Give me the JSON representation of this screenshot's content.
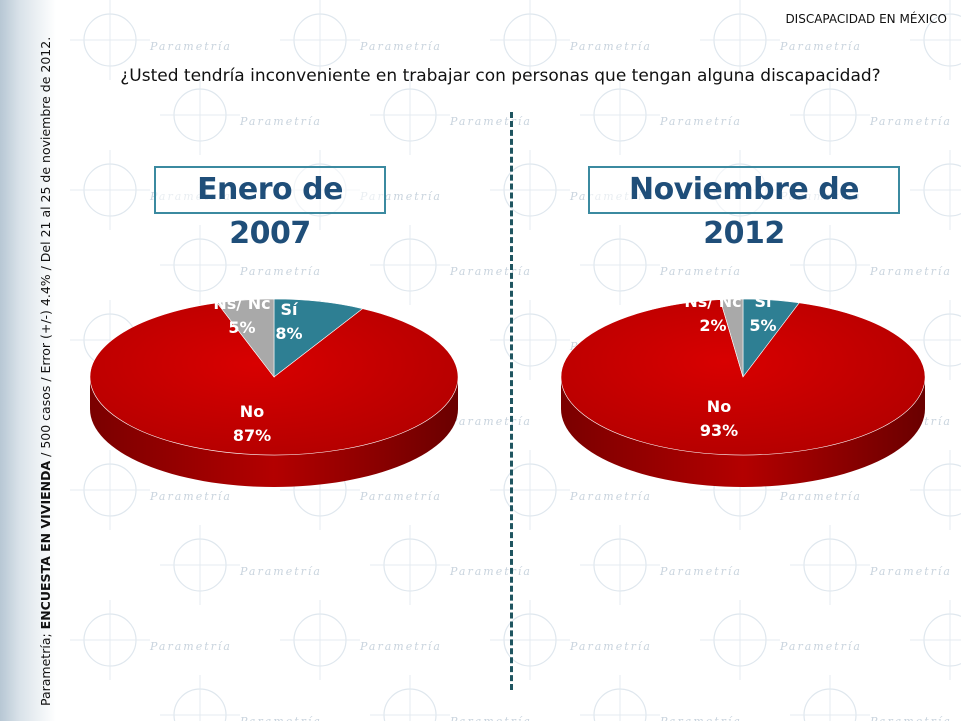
{
  "header": {
    "tag": "DISCAPACIDAD EN MÉXICO"
  },
  "question": "¿Usted tendría inconveniente en trabajar con personas que tengan alguna discapacidad?",
  "side_note": {
    "prefix": "Parametría; ",
    "bold": "ENCUESTA EN VIVIENDA",
    "rest": " / 500 casos / Error (+/-) 4.4% / Del 21 al 25 de noviembre de 2012."
  },
  "watermark_word": "Parametría",
  "colors": {
    "si": "#2e7f93",
    "nsnc": "#a9a9a9",
    "no": "#c00000",
    "no_side": "#8a0000",
    "title_text": "#1f4e79",
    "title_border": "#3b8aa0"
  },
  "chart_data": [
    {
      "type": "pie",
      "title": "Enero de 2007",
      "slices": [
        {
          "label": "Sí",
          "value": 8,
          "value_label": "8%"
        },
        {
          "label": "No",
          "value": 87,
          "value_label": "87%"
        },
        {
          "label": "Ns/ Nc",
          "value": 5,
          "value_label": "5%"
        }
      ]
    },
    {
      "type": "pie",
      "title": "Noviembre de 2012",
      "slices": [
        {
          "label": "Sí",
          "value": 5,
          "value_label": "5%"
        },
        {
          "label": "No",
          "value": 93,
          "value_label": "93%"
        },
        {
          "label": "Ns/ Nc",
          "value": 2,
          "value_label": "2%"
        }
      ]
    }
  ]
}
